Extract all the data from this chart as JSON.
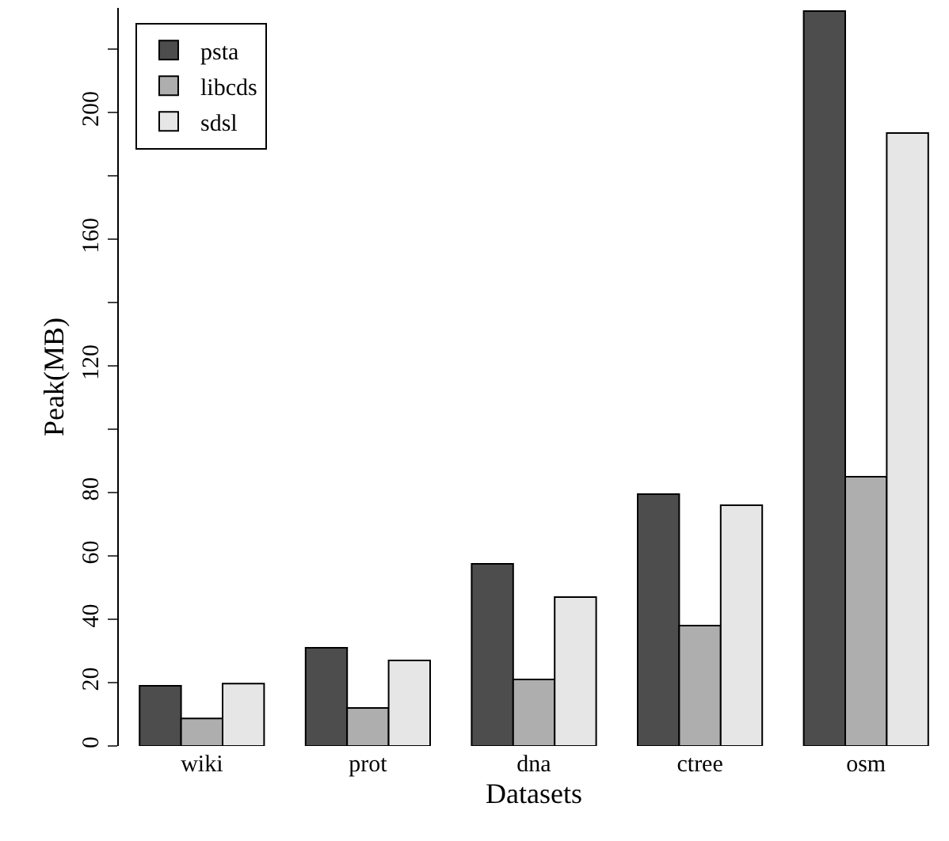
{
  "chart_data": {
    "type": "bar",
    "xlabel": "Datasets",
    "ylabel": "Peak(MB)",
    "categories": [
      "wiki",
      "prot",
      "dna",
      "ctree",
      "osm"
    ],
    "series": [
      {
        "name": "psta",
        "color": "#4d4d4d",
        "values": [
          19,
          31,
          57.5,
          79.5,
          232
        ]
      },
      {
        "name": "libcds",
        "color": "#aeaeae",
        "values": [
          8.7,
          12,
          21,
          38,
          85
        ]
      },
      {
        "name": "sdsl",
        "color": "#e6e6e6",
        "values": [
          19.7,
          27,
          47,
          76,
          193.5
        ]
      }
    ],
    "ylim": [
      0,
      233
    ],
    "yticks": [
      0,
      20,
      40,
      60,
      80,
      {
        "value": 100,
        "label": null
      },
      120,
      {
        "value": 140,
        "label": null
      },
      160,
      {
        "value": 180,
        "label": null
      },
      200,
      {
        "value": 220,
        "label": null
      }
    ],
    "legend": "top left"
  }
}
